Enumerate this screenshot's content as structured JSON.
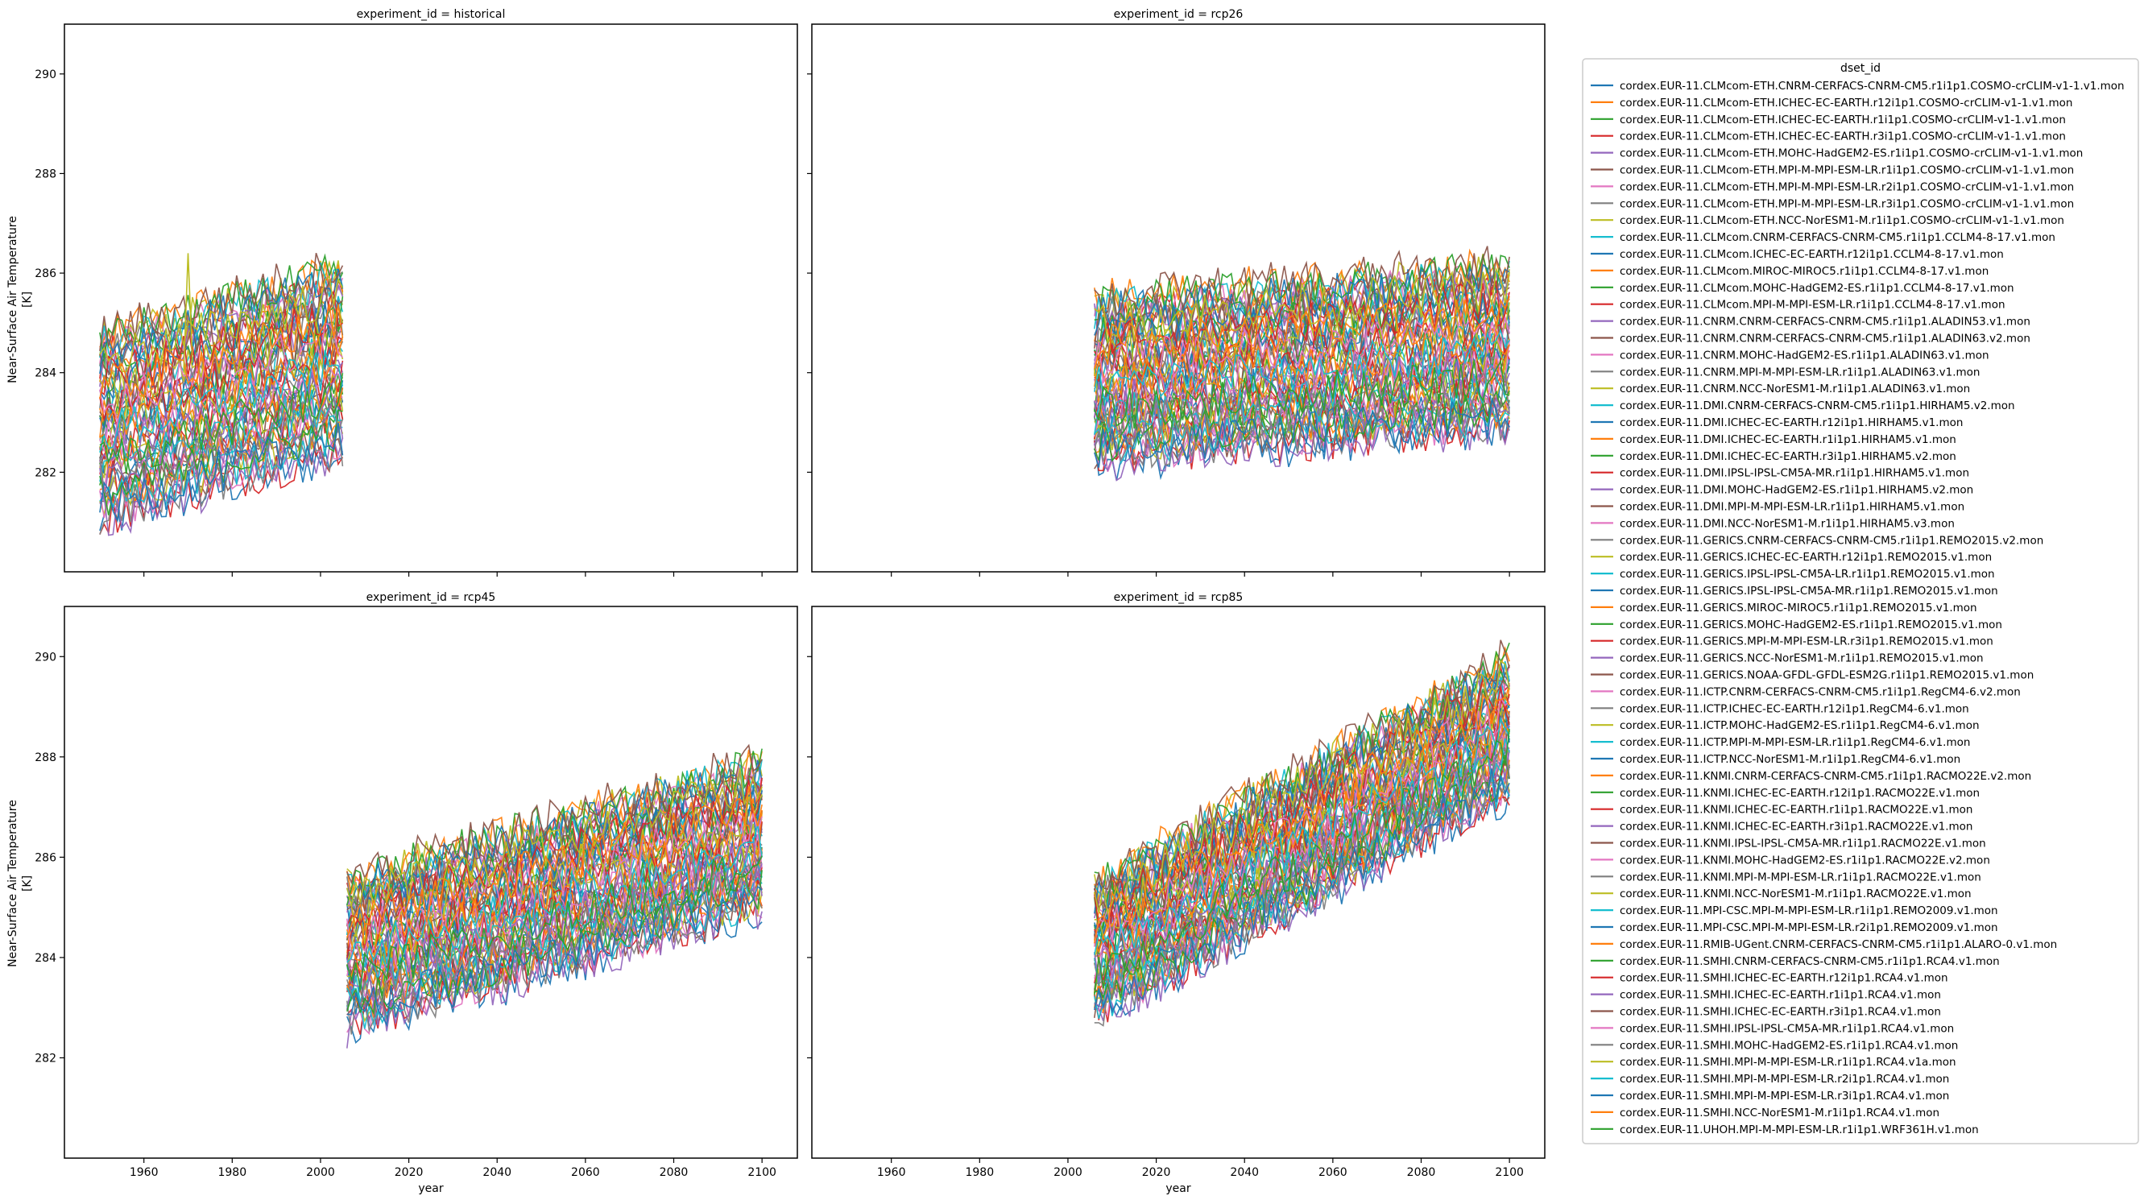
{
  "chart_data": {
    "type": "line",
    "facet_titles": [
      "experiment_id = historical",
      "experiment_id = rcp26",
      "experiment_id = rcp45",
      "experiment_id = rcp85"
    ],
    "xlabel": "year",
    "ylabel_line1": "Near-Surface Air Temperature",
    "ylabel_line2": "[K]",
    "xlim": [
      1942,
      2108
    ],
    "ylim": [
      280,
      291
    ],
    "xticks": [
      "1960",
      "1980",
      "2000",
      "2020",
      "2040",
      "2060",
      "2080",
      "2100"
    ],
    "yticks": [
      "282",
      "284",
      "286",
      "288",
      "290"
    ],
    "legend_title": "dset_id",
    "legend_placement": "right",
    "grid": false,
    "palette": [
      "#1f77b4",
      "#ff7f0e",
      "#2ca02c",
      "#d62728",
      "#9467bd",
      "#8c564b",
      "#e377c2",
      "#7f7f7f",
      "#bcbd22",
      "#17becf"
    ],
    "series_names": [
      "cordex.EUR-11.CLMcom-ETH.CNRM-CERFACS-CNRM-CM5.r1i1p1.COSMO-crCLIM-v1-1.v1.mon",
      "cordex.EUR-11.CLMcom-ETH.ICHEC-EC-EARTH.r12i1p1.COSMO-crCLIM-v1-1.v1.mon",
      "cordex.EUR-11.CLMcom-ETH.ICHEC-EC-EARTH.r1i1p1.COSMO-crCLIM-v1-1.v1.mon",
      "cordex.EUR-11.CLMcom-ETH.ICHEC-EC-EARTH.r3i1p1.COSMO-crCLIM-v1-1.v1.mon",
      "cordex.EUR-11.CLMcom-ETH.MOHC-HadGEM2-ES.r1i1p1.COSMO-crCLIM-v1-1.v1.mon",
      "cordex.EUR-11.CLMcom-ETH.MPI-M-MPI-ESM-LR.r1i1p1.COSMO-crCLIM-v1-1.v1.mon",
      "cordex.EUR-11.CLMcom-ETH.MPI-M-MPI-ESM-LR.r2i1p1.COSMO-crCLIM-v1-1.v1.mon",
      "cordex.EUR-11.CLMcom-ETH.MPI-M-MPI-ESM-LR.r3i1p1.COSMO-crCLIM-v1-1.v1.mon",
      "cordex.EUR-11.CLMcom-ETH.NCC-NorESM1-M.r1i1p1.COSMO-crCLIM-v1-1.v1.mon",
      "cordex.EUR-11.CLMcom.CNRM-CERFACS-CNRM-CM5.r1i1p1.CCLM4-8-17.v1.mon",
      "cordex.EUR-11.CLMcom.ICHEC-EC-EARTH.r12i1p1.CCLM4-8-17.v1.mon",
      "cordex.EUR-11.CLMcom.MIROC-MIROC5.r1i1p1.CCLM4-8-17.v1.mon",
      "cordex.EUR-11.CLMcom.MOHC-HadGEM2-ES.r1i1p1.CCLM4-8-17.v1.mon",
      "cordex.EUR-11.CLMcom.MPI-M-MPI-ESM-LR.r1i1p1.CCLM4-8-17.v1.mon",
      "cordex.EUR-11.CNRM.CNRM-CERFACS-CNRM-CM5.r1i1p1.ALADIN53.v1.mon",
      "cordex.EUR-11.CNRM.CNRM-CERFACS-CNRM-CM5.r1i1p1.ALADIN63.v2.mon",
      "cordex.EUR-11.CNRM.MOHC-HadGEM2-ES.r1i1p1.ALADIN63.v1.mon",
      "cordex.EUR-11.CNRM.MPI-M-MPI-ESM-LR.r1i1p1.ALADIN63.v1.mon",
      "cordex.EUR-11.CNRM.NCC-NorESM1-M.r1i1p1.ALADIN63.v1.mon",
      "cordex.EUR-11.DMI.CNRM-CERFACS-CNRM-CM5.r1i1p1.HIRHAM5.v2.mon",
      "cordex.EUR-11.DMI.ICHEC-EC-EARTH.r12i1p1.HIRHAM5.v1.mon",
      "cordex.EUR-11.DMI.ICHEC-EC-EARTH.r1i1p1.HIRHAM5.v1.mon",
      "cordex.EUR-11.DMI.ICHEC-EC-EARTH.r3i1p1.HIRHAM5.v2.mon",
      "cordex.EUR-11.DMI.IPSL-IPSL-CM5A-MR.r1i1p1.HIRHAM5.v1.mon",
      "cordex.EUR-11.DMI.MOHC-HadGEM2-ES.r1i1p1.HIRHAM5.v2.mon",
      "cordex.EUR-11.DMI.MPI-M-MPI-ESM-LR.r1i1p1.HIRHAM5.v1.mon",
      "cordex.EUR-11.DMI.NCC-NorESM1-M.r1i1p1.HIRHAM5.v3.mon",
      "cordex.EUR-11.GERICS.CNRM-CERFACS-CNRM-CM5.r1i1p1.REMO2015.v2.mon",
      "cordex.EUR-11.GERICS.ICHEC-EC-EARTH.r12i1p1.REMO2015.v1.mon",
      "cordex.EUR-11.GERICS.IPSL-IPSL-CM5A-LR.r1i1p1.REMO2015.v1.mon",
      "cordex.EUR-11.GERICS.IPSL-IPSL-CM5A-MR.r1i1p1.REMO2015.v1.mon",
      "cordex.EUR-11.GERICS.MIROC-MIROC5.r1i1p1.REMO2015.v1.mon",
      "cordex.EUR-11.GERICS.MOHC-HadGEM2-ES.r1i1p1.REMO2015.v1.mon",
      "cordex.EUR-11.GERICS.MPI-M-MPI-ESM-LR.r3i1p1.REMO2015.v1.mon",
      "cordex.EUR-11.GERICS.NCC-NorESM1-M.r1i1p1.REMO2015.v1.mon",
      "cordex.EUR-11.GERICS.NOAA-GFDL-GFDL-ESM2G.r1i1p1.REMO2015.v1.mon",
      "cordex.EUR-11.ICTP.CNRM-CERFACS-CNRM-CM5.r1i1p1.RegCM4-6.v2.mon",
      "cordex.EUR-11.ICTP.ICHEC-EC-EARTH.r12i1p1.RegCM4-6.v1.mon",
      "cordex.EUR-11.ICTP.MOHC-HadGEM2-ES.r1i1p1.RegCM4-6.v1.mon",
      "cordex.EUR-11.ICTP.MPI-M-MPI-ESM-LR.r1i1p1.RegCM4-6.v1.mon",
      "cordex.EUR-11.ICTP.NCC-NorESM1-M.r1i1p1.RegCM4-6.v1.mon",
      "cordex.EUR-11.KNMI.CNRM-CERFACS-CNRM-CM5.r1i1p1.RACMO22E.v2.mon",
      "cordex.EUR-11.KNMI.ICHEC-EC-EARTH.r12i1p1.RACMO22E.v1.mon",
      "cordex.EUR-11.KNMI.ICHEC-EC-EARTH.r1i1p1.RACMO22E.v1.mon",
      "cordex.EUR-11.KNMI.ICHEC-EC-EARTH.r3i1p1.RACMO22E.v1.mon",
      "cordex.EUR-11.KNMI.IPSL-IPSL-CM5A-MR.r1i1p1.RACMO22E.v1.mon",
      "cordex.EUR-11.KNMI.MOHC-HadGEM2-ES.r1i1p1.RACMO22E.v2.mon",
      "cordex.EUR-11.KNMI.MPI-M-MPI-ESM-LR.r1i1p1.RACMO22E.v1.mon",
      "cordex.EUR-11.KNMI.NCC-NorESM1-M.r1i1p1.RACMO22E.v1.mon",
      "cordex.EUR-11.MPI-CSC.MPI-M-MPI-ESM-LR.r1i1p1.REMO2009.v1.mon",
      "cordex.EUR-11.MPI-CSC.MPI-M-MPI-ESM-LR.r2i1p1.REMO2009.v1.mon",
      "cordex.EUR-11.RMIB-UGent.CNRM-CERFACS-CNRM-CM5.r1i1p1.ALARO-0.v1.mon",
      "cordex.EUR-11.SMHI.CNRM-CERFACS-CNRM-CM5.r1i1p1.RCA4.v1.mon",
      "cordex.EUR-11.SMHI.ICHEC-EC-EARTH.r12i1p1.RCA4.v1.mon",
      "cordex.EUR-11.SMHI.ICHEC-EC-EARTH.r1i1p1.RCA4.v1.mon",
      "cordex.EUR-11.SMHI.ICHEC-EC-EARTH.r3i1p1.RCA4.v1.mon",
      "cordex.EUR-11.SMHI.IPSL-IPSL-CM5A-MR.r1i1p1.RCA4.v1.mon",
      "cordex.EUR-11.SMHI.MOHC-HadGEM2-ES.r1i1p1.RCA4.v1.mon",
      "cordex.EUR-11.SMHI.MPI-M-MPI-ESM-LR.r1i1p1.RCA4.v1a.mon",
      "cordex.EUR-11.SMHI.MPI-M-MPI-ESM-LR.r2i1p1.RCA4.v1.mon",
      "cordex.EUR-11.SMHI.MPI-M-MPI-ESM-LR.r3i1p1.RCA4.v1.mon",
      "cordex.EUR-11.SMHI.NCC-NorESM1-M.r1i1p1.RCA4.v1.mon",
      "cordex.EUR-11.UHOH.MPI-M-MPI-ESM-LR.r1i1p1.WRF361H.v1.mon"
    ],
    "panels": [
      {
        "experiment": "historical",
        "x_range": [
          1950,
          2005
        ],
        "start_range": [
          281.0,
          284.8
        ],
        "end_range": [
          282.5,
          285.9
        ],
        "highest_start": 284.8,
        "lowest_start": 281.0
      },
      {
        "experiment": "rcp26",
        "x_range": [
          2006,
          2100
        ],
        "start_range": [
          282.2,
          285.5
        ],
        "end_range": [
          282.7,
          286.6
        ],
        "highest_value": 287.0,
        "lowest_value": 282.0
      },
      {
        "experiment": "rcp45",
        "x_range": [
          2006,
          2100
        ],
        "start_range": [
          282.6,
          285.6
        ],
        "end_range": [
          284.8,
          288.3
        ],
        "highest_value": 288.3,
        "lowest_value": 282.6
      },
      {
        "experiment": "rcp85",
        "x_range": [
          2006,
          2100
        ],
        "start_range": [
          282.8,
          285.5
        ],
        "end_range": [
          287.1,
          290.5
        ],
        "highest_value": 290.5,
        "lowest_value": 282.6
      }
    ]
  }
}
